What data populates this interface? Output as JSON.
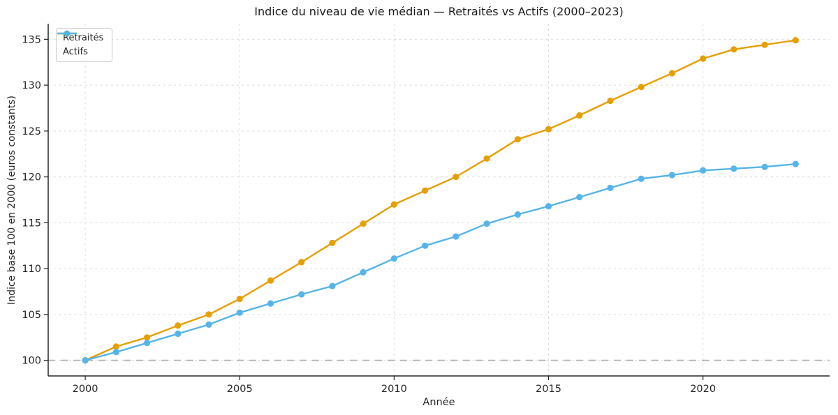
{
  "figure": {
    "background": "#ffffff"
  },
  "chart_data": {
    "type": "line",
    "title": "Indice du niveau de vie médian — Retraités vs Actifs (2000–2023)",
    "xlabel": "Année",
    "ylabel": "Indice base 100 en 2000 (euros constants)",
    "x": [
      2000,
      2001,
      2002,
      2003,
      2004,
      2005,
      2006,
      2007,
      2008,
      2009,
      2010,
      2011,
      2012,
      2013,
      2014,
      2015,
      2016,
      2017,
      2018,
      2019,
      2020,
      2021,
      2022,
      2023
    ],
    "series": [
      {
        "name": "Retraités",
        "color": "#E69F00",
        "values": [
          100.0,
          101.5,
          102.5,
          103.8,
          105.0,
          106.7,
          108.7,
          110.7,
          112.8,
          114.9,
          117.0,
          118.5,
          120.0,
          122.0,
          124.1,
          125.2,
          126.7,
          128.3,
          129.8,
          131.3,
          132.9,
          133.9,
          134.4,
          134.9
        ]
      },
      {
        "name": "Actifs",
        "color": "#56B4E9",
        "values": [
          100.0,
          100.9,
          101.9,
          102.9,
          103.9,
          105.2,
          106.2,
          107.2,
          108.1,
          109.6,
          111.1,
          112.5,
          113.5,
          114.9,
          115.9,
          116.8,
          117.8,
          118.8,
          119.8,
          120.2,
          120.7,
          120.9,
          121.1,
          121.4
        ]
      }
    ],
    "xticks": [
      2000,
      2005,
      2010,
      2015,
      2020
    ],
    "yticks": [
      100,
      105,
      110,
      115,
      120,
      125,
      130,
      135
    ],
    "xlim": [
      1998.8,
      2024.1
    ],
    "ylim": [
      98.3,
      136.7
    ],
    "grid": true,
    "grid_style": "dashed",
    "reference_line": {
      "value": 100,
      "style": "dashed",
      "color": "#b0b0b0"
    },
    "legend": {
      "position": "upper left",
      "entries": [
        "Retraités",
        "Actifs"
      ]
    }
  },
  "style": {
    "grid_color": "#d9d9d9",
    "spine_color": "#262626",
    "tick_color": "#262626",
    "text_color": "#262626",
    "title_color": "#1a1a1a",
    "legend_border": "#cccccc"
  }
}
